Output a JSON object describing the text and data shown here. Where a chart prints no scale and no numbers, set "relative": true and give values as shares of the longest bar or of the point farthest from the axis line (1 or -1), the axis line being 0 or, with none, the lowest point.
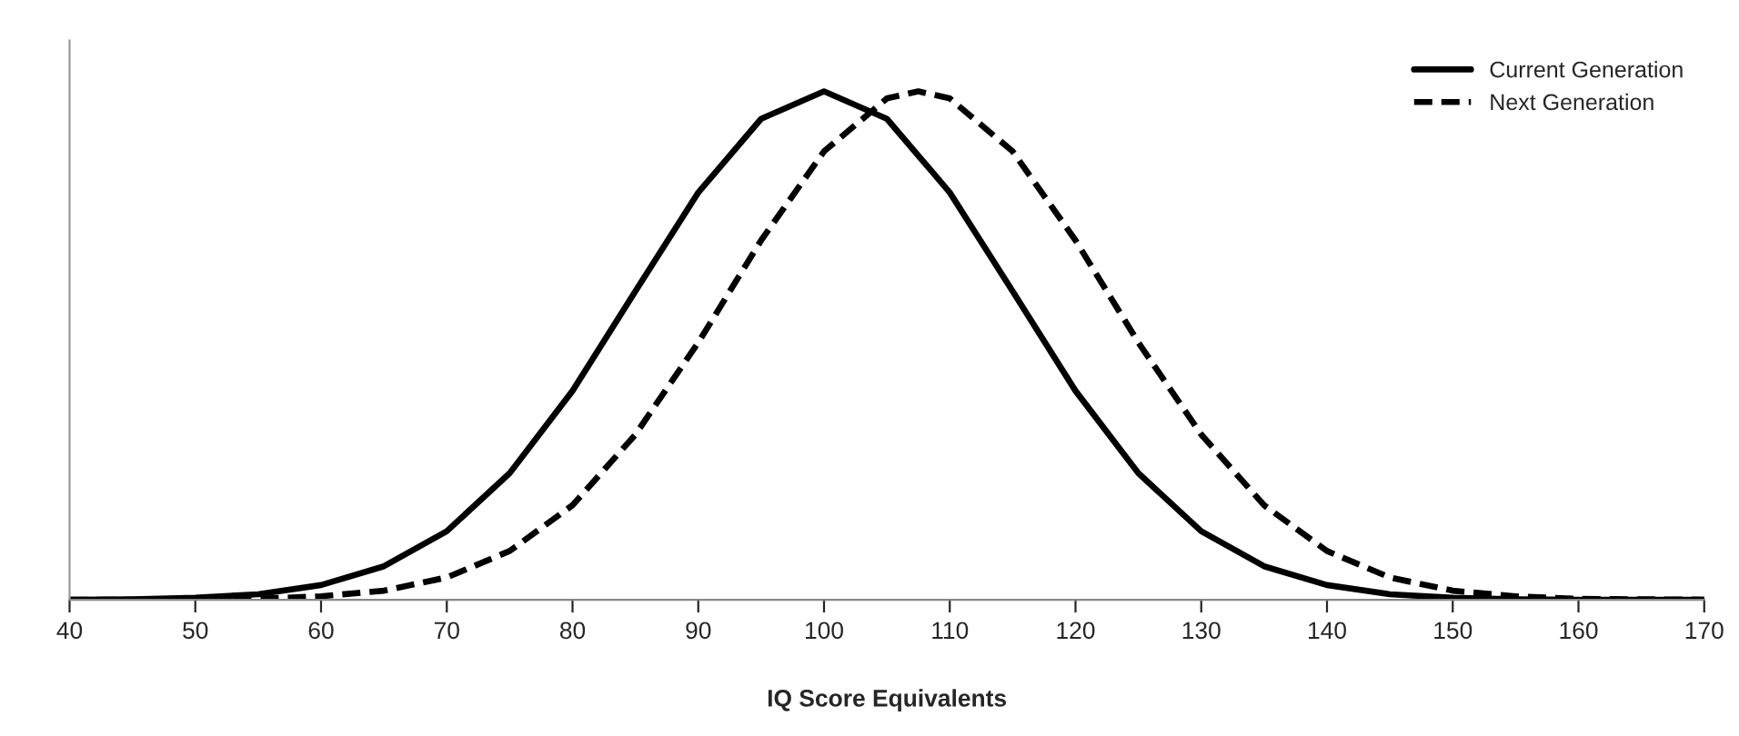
{
  "chart_data": {
    "type": "line",
    "relative": true,
    "xlabel": "IQ Score Equivalents",
    "xlim": [
      40,
      170
    ],
    "xticks": [
      40,
      50,
      60,
      70,
      80,
      90,
      100,
      110,
      120,
      130,
      140,
      150,
      160,
      170
    ],
    "tick_labels": "x",
    "grid": false,
    "legend": "top right",
    "marker": "none",
    "series": [
      {
        "name": "Current Generation",
        "color": "#000000",
        "line_style": "solid",
        "x": [
          40,
          45,
          50,
          55,
          60,
          65,
          70,
          75,
          80,
          85,
          90,
          95,
          100,
          105,
          110,
          115,
          120,
          125,
          130,
          135,
          140,
          145,
          150,
          155,
          160,
          165,
          170
        ],
        "values": [
          0.0003,
          0.001,
          0.004,
          0.011,
          0.029,
          0.066,
          0.135,
          0.249,
          0.411,
          0.607,
          0.801,
          0.946,
          1,
          0.946,
          0.801,
          0.607,
          0.411,
          0.249,
          0.135,
          0.066,
          0.029,
          0.011,
          0.004,
          0.001,
          0.0003,
          0.0001,
          0
        ]
      },
      {
        "name": "Next Generation",
        "color": "#000000",
        "line_style": "dashed",
        "x": [
          40,
          45,
          50,
          55,
          60,
          65,
          70,
          75,
          80,
          85,
          90,
          95,
          100,
          105,
          107.5,
          110,
          115,
          120,
          125,
          130,
          135,
          140,
          145,
          150,
          155,
          160,
          165,
          170
        ],
        "values": [
          0,
          0.0002,
          0.001,
          0.002,
          0.007,
          0.018,
          0.044,
          0.096,
          0.186,
          0.325,
          0.506,
          0.707,
          0.882,
          0.986,
          1,
          0.986,
          0.882,
          0.707,
          0.506,
          0.325,
          0.186,
          0.096,
          0.044,
          0.018,
          0.007,
          0.002,
          0.001,
          0.0002
        ]
      }
    ]
  }
}
